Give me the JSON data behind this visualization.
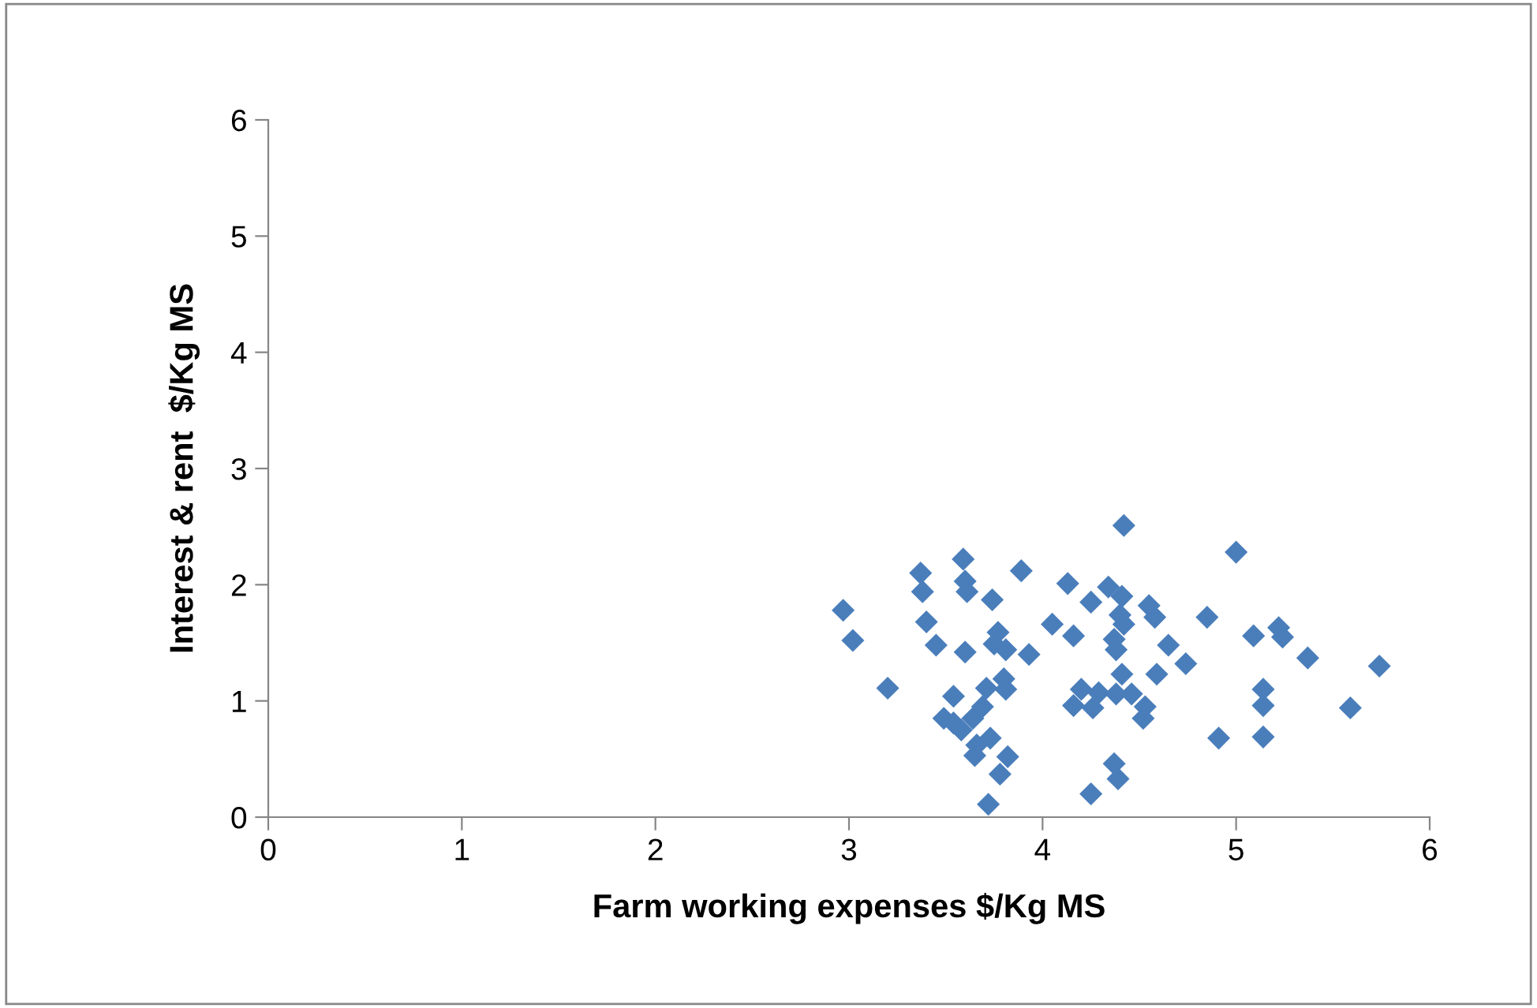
{
  "chart_data": {
    "type": "scatter",
    "xlabel": "Farm working expenses $/Kg MS",
    "ylabel": "Interest & rent  $/Kg MS",
    "xlim": [
      0,
      6
    ],
    "xticks": [
      0,
      1,
      2,
      3,
      4,
      5,
      6
    ],
    "ylim": [
      0,
      6
    ],
    "yticks": [
      0,
      1,
      2,
      3,
      4,
      5,
      6
    ],
    "grid": false,
    "legend": false,
    "marker": "diamond",
    "series": [
      {
        "color": "#4a7ebb",
        "x": [
          2.97,
          3.02,
          3.2,
          3.37,
          3.38,
          3.4,
          3.45,
          3.49,
          3.54,
          3.54,
          3.58,
          3.59,
          3.6,
          3.61,
          3.6,
          3.64,
          3.66,
          3.65,
          3.69,
          3.71,
          3.75,
          3.77,
          3.74,
          3.72,
          3.73,
          3.78,
          3.8,
          3.81,
          3.81,
          3.82,
          3.89,
          3.93,
          4.05,
          4.13,
          4.16,
          4.16,
          4.2,
          4.25,
          4.26,
          4.29,
          4.25,
          4.34,
          4.41,
          4.42,
          4.4,
          4.42,
          4.37,
          4.38,
          4.41,
          4.38,
          4.46,
          4.52,
          4.53,
          4.37,
          4.39,
          4.55,
          4.58,
          4.65,
          4.59,
          4.74,
          4.85,
          4.91,
          5.0,
          5.09,
          5.14,
          5.14,
          5.14,
          5.22,
          5.24,
          5.37,
          5.59,
          5.74
        ],
        "values": [
          1.78,
          1.52,
          1.11,
          2.1,
          1.94,
          1.68,
          1.48,
          0.85,
          1.04,
          0.81,
          0.75,
          2.22,
          2.03,
          1.94,
          1.42,
          0.85,
          0.62,
          0.53,
          0.95,
          1.11,
          1.49,
          1.59,
          1.87,
          0.11,
          0.68,
          0.37,
          1.19,
          1.44,
          1.1,
          0.52,
          2.12,
          1.4,
          1.66,
          2.01,
          1.56,
          0.96,
          1.1,
          1.85,
          0.94,
          1.07,
          0.2,
          1.98,
          1.9,
          2.51,
          1.74,
          1.66,
          1.53,
          1.44,
          1.23,
          1.06,
          1.06,
          0.85,
          0.95,
          0.46,
          0.33,
          1.82,
          1.72,
          1.48,
          1.23,
          1.32,
          1.72,
          0.68,
          2.28,
          1.56,
          1.1,
          0.96,
          0.69,
          1.63,
          1.55,
          1.37,
          0.94,
          1.3
        ]
      }
    ]
  }
}
